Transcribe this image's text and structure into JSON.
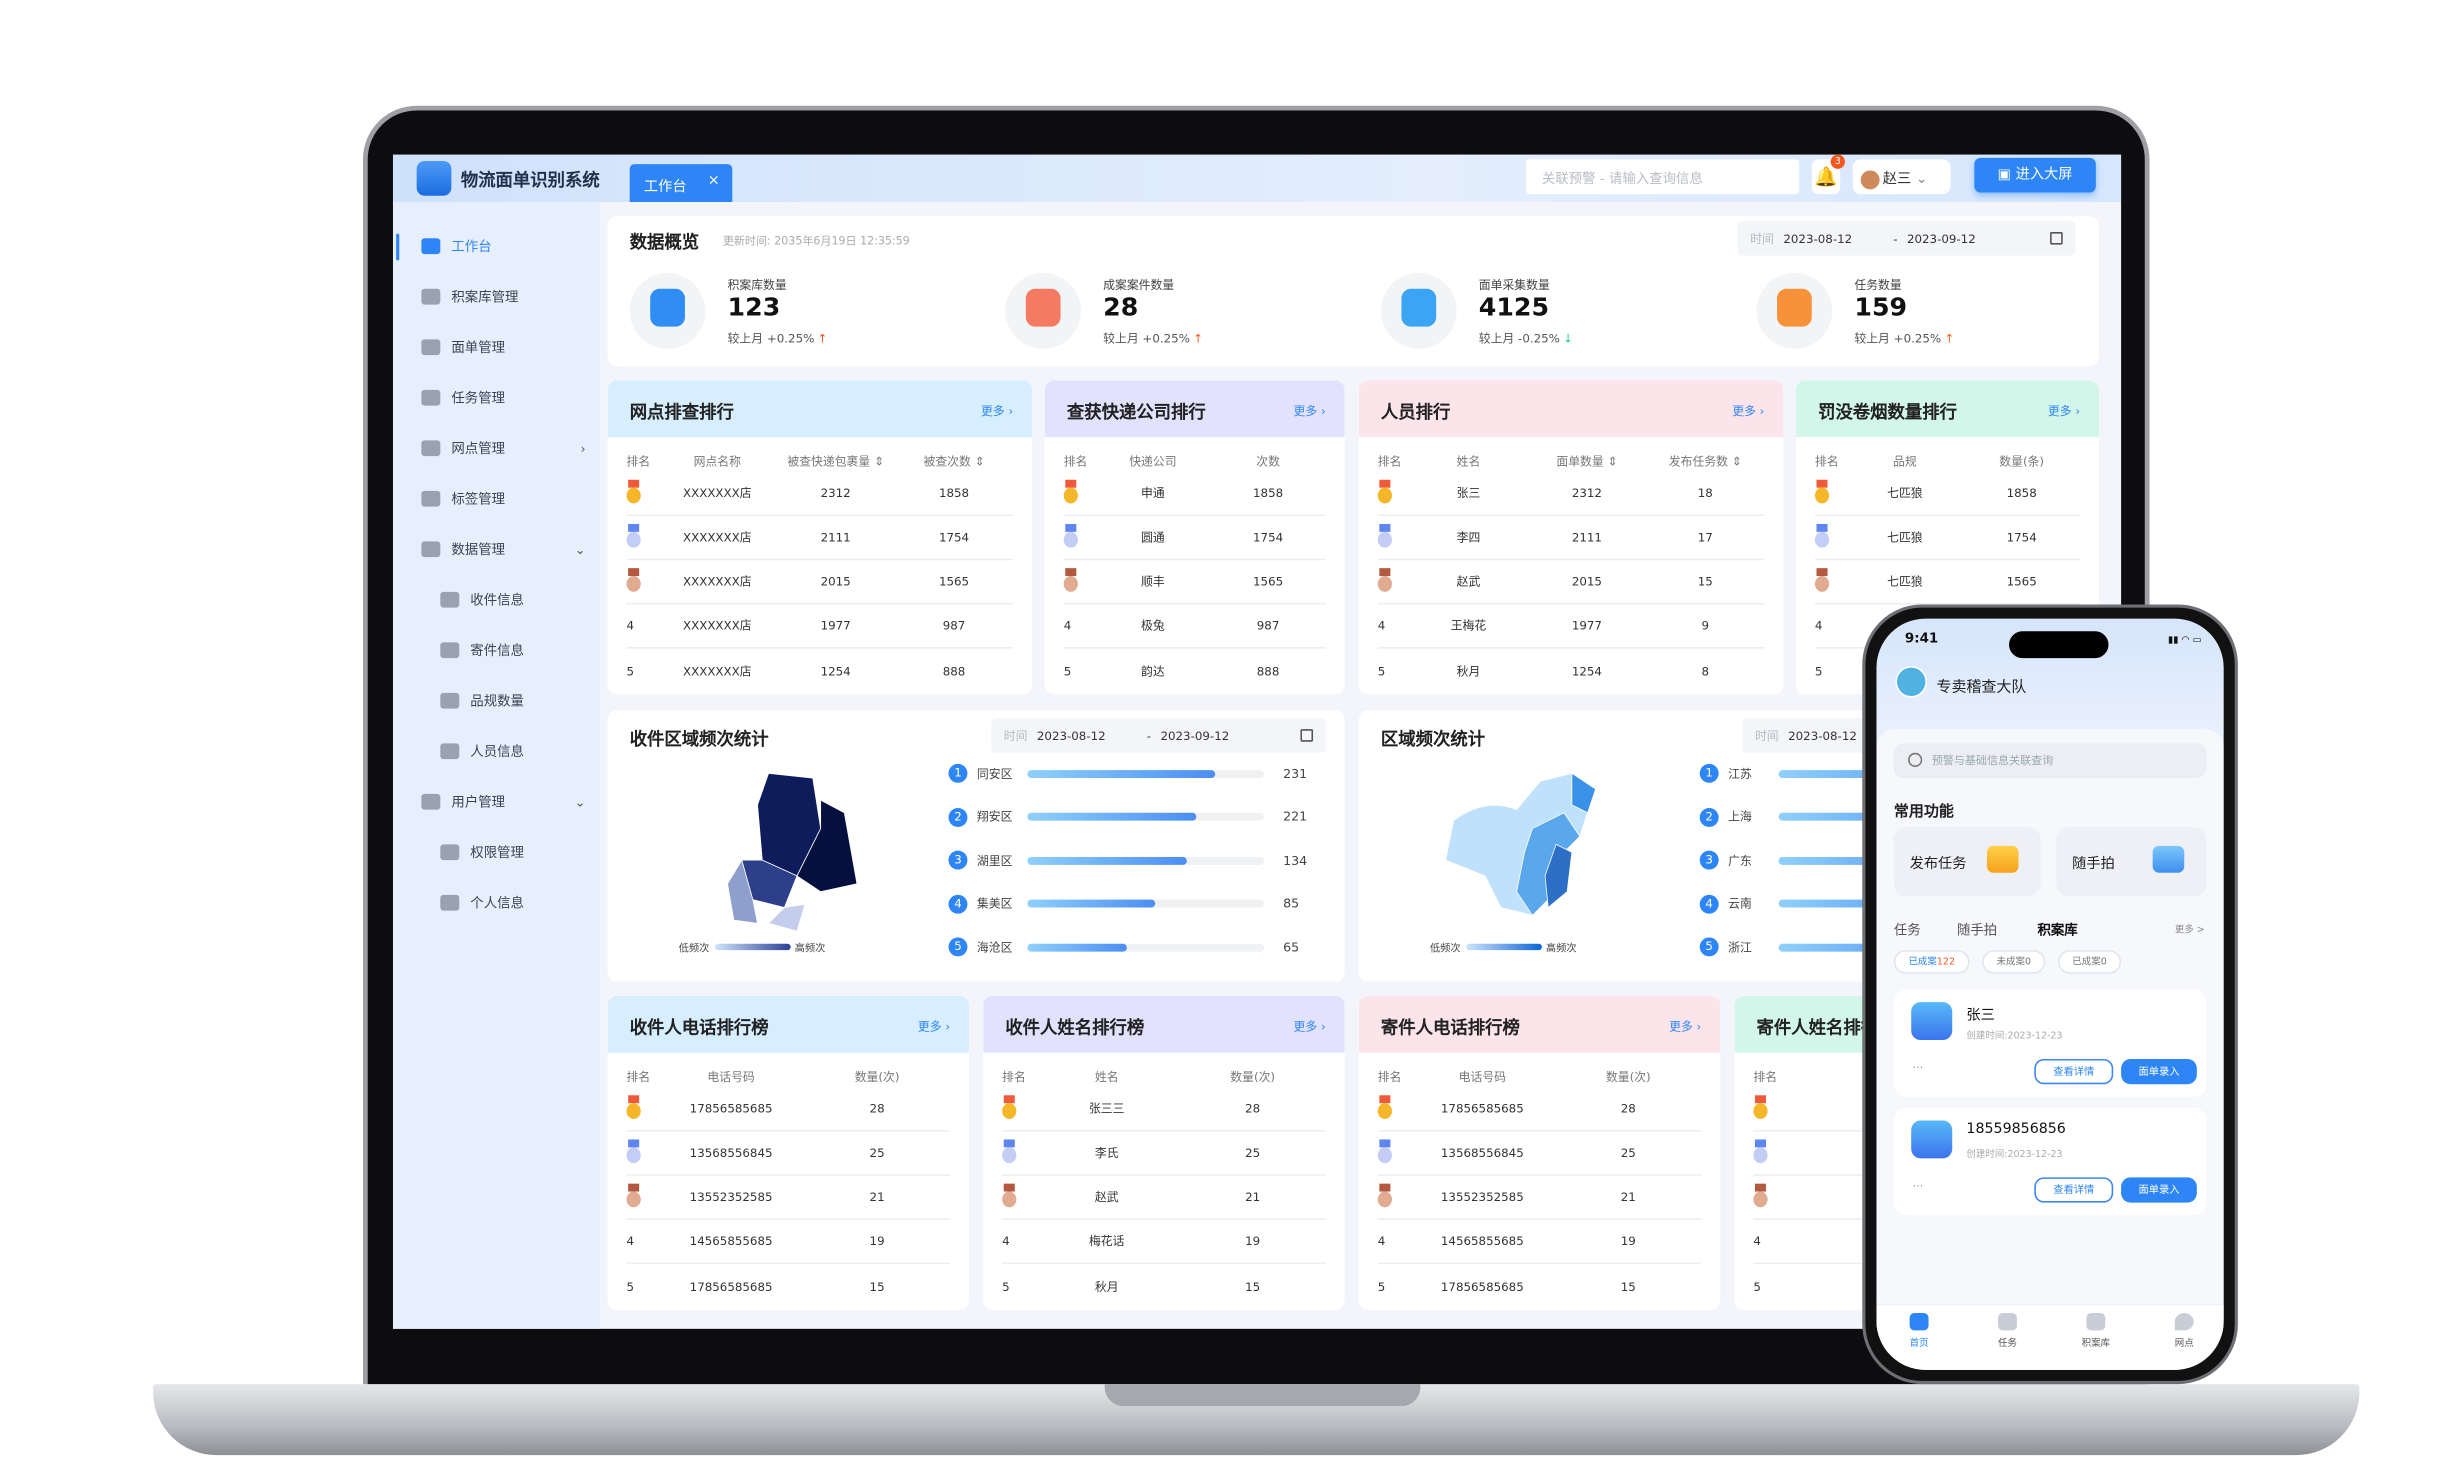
{
  "app": {
    "title": "物流面单识别系统",
    "tab_label": "工作台",
    "search_placeholder": "关联预警 - 请输入查询信息",
    "notification_count": "3",
    "user_name": "赵三",
    "big_screen_button": "进入大屏",
    "accent": "#2e86f6"
  },
  "sidebar": {
    "items": [
      {
        "label": "工作台",
        "icon": "home-icon",
        "active": true,
        "level": 0
      },
      {
        "label": "积案库管理",
        "icon": "hierarchy-icon",
        "level": 0
      },
      {
        "label": "面单管理",
        "icon": "clipboard-icon",
        "level": 0
      },
      {
        "label": "任务管理",
        "icon": "network-icon",
        "level": 0
      },
      {
        "label": "网点管理",
        "icon": "globe-icon",
        "level": 0,
        "arrow": "›"
      },
      {
        "label": "标签管理",
        "icon": "tag-icon",
        "level": 0
      },
      {
        "label": "数据管理",
        "icon": "bar-chart-icon",
        "level": 0,
        "arrow": "⌄"
      },
      {
        "label": "收件信息",
        "icon": "inbox-in-icon",
        "level": 1
      },
      {
        "label": "寄件信息",
        "icon": "inbox-out-icon",
        "level": 1
      },
      {
        "label": "品规数量",
        "icon": "box-icon",
        "level": 1
      },
      {
        "label": "人员信息",
        "icon": "id-card-icon",
        "level": 1
      },
      {
        "label": "用户管理",
        "icon": "user-settings-icon",
        "level": 0,
        "arrow": "⌄"
      },
      {
        "label": "权限管理",
        "icon": "lock-icon",
        "level": 1
      },
      {
        "label": "个人信息",
        "icon": "person-icon",
        "level": 1
      }
    ]
  },
  "overview": {
    "title": "数据概览",
    "updated": "更新时间: 2035年6月19日 12:35:59",
    "date_label": "时间",
    "date_start": "2023-08-12",
    "date_end": "2023-09-12",
    "date_sep": "-",
    "stats": [
      {
        "label": "积案库数量",
        "value": "123",
        "change": "较上月 +0.25%",
        "trend": "up",
        "color": "#2f8df4"
      },
      {
        "label": "成案案件数量",
        "value": "28",
        "change": "较上月 +0.25%",
        "trend": "up",
        "color": "#f57a62"
      },
      {
        "label": "面单采集数量",
        "value": "4125",
        "change": "较上月 -0.25%",
        "trend": "down",
        "color": "#3ba4f5"
      },
      {
        "label": "任务数量",
        "value": "159",
        "change": "较上月 +0.25%",
        "trend": "up",
        "color": "#f7923a"
      }
    ]
  },
  "rank_top": [
    {
      "title": "网点排查排行",
      "more": "更多 ›",
      "color": "#d6eefe",
      "headers": [
        "排名",
        "网点名称",
        "被查快递包裹量 ⇕",
        "被查次数 ⇕"
      ],
      "rows": [
        [
          "1",
          "XXXXXXX店",
          "2312",
          "1858"
        ],
        [
          "2",
          "XXXXXXX店",
          "2111",
          "1754"
        ],
        [
          "3",
          "XXXXXXX店",
          "2015",
          "1565"
        ],
        [
          "4",
          "XXXXXXX店",
          "1977",
          "987"
        ],
        [
          "5",
          "XXXXXXX店",
          "1254",
          "888"
        ]
      ]
    },
    {
      "title": "查获快递公司排行",
      "more": "更多 ›",
      "color": "#e2e2fe",
      "headers": [
        "排名",
        "快递公司",
        "次数"
      ],
      "rows": [
        [
          "1",
          "申通",
          "1858"
        ],
        [
          "2",
          "圆通",
          "1754"
        ],
        [
          "3",
          "顺丰",
          "1565"
        ],
        [
          "4",
          "极兔",
          "987"
        ],
        [
          "5",
          "韵达",
          "888"
        ]
      ]
    },
    {
      "title": "人员排行",
      "more": "更多 ›",
      "color": "#fbe4ea",
      "headers": [
        "排名",
        "姓名",
        "面单数量 ⇕",
        "发布任务数 ⇕"
      ],
      "rows": [
        [
          "1",
          "张三",
          "2312",
          "18"
        ],
        [
          "2",
          "李四",
          "2111",
          "17"
        ],
        [
          "3",
          "赵武",
          "2015",
          "15"
        ],
        [
          "4",
          "王梅花",
          "1977",
          "9"
        ],
        [
          "5",
          "秋月",
          "1254",
          "8"
        ]
      ]
    },
    {
      "title": "罚没卷烟数量排行",
      "more": "更多 ›",
      "color": "#d3f6ea",
      "headers": [
        "排名",
        "品规",
        "数量(条)"
      ],
      "rows": [
        [
          "1",
          "七匹狼",
          "1858"
        ],
        [
          "2",
          "七匹狼",
          "1754"
        ],
        [
          "3",
          "七匹狼",
          "1565"
        ],
        [
          "4",
          "",
          ""
        ],
        [
          "5",
          "",
          ""
        ]
      ]
    }
  ],
  "regions": [
    {
      "title": "收件区域频次统计",
      "date_label": "时间",
      "date_start": "2023-08-12",
      "date_sep": "-",
      "date_end": "2023-09-12",
      "legend_low": "低频次",
      "legend_high": "高频次",
      "items": [
        {
          "rank": "1",
          "name": "同安区",
          "value": "231",
          "fill": 0.79
        },
        {
          "rank": "2",
          "name": "翔安区",
          "value": "221",
          "fill": 0.71
        },
        {
          "rank": "3",
          "name": "湖里区",
          "value": "134",
          "fill": 0.67
        },
        {
          "rank": "4",
          "name": "集美区",
          "value": "85",
          "fill": 0.54
        },
        {
          "rank": "5",
          "name": "海沧区",
          "value": "65",
          "fill": 0.42
        }
      ]
    },
    {
      "title": "区域频次统计",
      "date_label": "时间",
      "date_start": "2023-08-12",
      "legend_low": "低频次",
      "legend_high": "高频次",
      "items": [
        {
          "rank": "1",
          "name": "江苏",
          "fill": 0.95
        },
        {
          "rank": "2",
          "name": "上海",
          "fill": 0.9
        },
        {
          "rank": "3",
          "name": "广东",
          "fill": 0.85
        },
        {
          "rank": "4",
          "name": "云南",
          "fill": 0.8
        },
        {
          "rank": "5",
          "name": "浙江",
          "fill": 0.75
        }
      ]
    }
  ],
  "rank_bottom": [
    {
      "title": "收件人电话排行榜",
      "more": "更多 ›",
      "color": "#d6eefe",
      "headers": [
        "排名",
        "电话号码",
        "数量(次)"
      ],
      "rows": [
        [
          "1",
          "17856585685",
          "28"
        ],
        [
          "2",
          "13568556845",
          "25"
        ],
        [
          "3",
          "13552352585",
          "21"
        ],
        [
          "4",
          "14565855685",
          "19"
        ],
        [
          "5",
          "17856585685",
          "15"
        ]
      ]
    },
    {
      "title": "收件人姓名排行榜",
      "more": "更多 ›",
      "color": "#e2e2fe",
      "headers": [
        "排名",
        "姓名",
        "数量(次)"
      ],
      "rows": [
        [
          "1",
          "张三三",
          "28"
        ],
        [
          "2",
          "李氏",
          "25"
        ],
        [
          "3",
          "赵武",
          "21"
        ],
        [
          "4",
          "梅花话",
          "19"
        ],
        [
          "5",
          "秋月",
          "15"
        ]
      ]
    },
    {
      "title": "寄件人电话排行榜",
      "more": "更多 ›",
      "color": "#fbe4ea",
      "headers": [
        "排名",
        "电话号码",
        "数量(次)"
      ],
      "rows": [
        [
          "1",
          "17856585685",
          "28"
        ],
        [
          "2",
          "13568556845",
          "25"
        ],
        [
          "3",
          "13552352585",
          "21"
        ],
        [
          "4",
          "14565855685",
          "19"
        ],
        [
          "5",
          "17856585685",
          "15"
        ]
      ]
    },
    {
      "title": "寄件人姓名排行榜",
      "more": "",
      "color": "#d3f6ea",
      "headers": [
        "排名"
      ],
      "rows": [
        [
          "1"
        ],
        [
          "2"
        ],
        [
          "3"
        ],
        [
          "4"
        ],
        [
          "5"
        ]
      ]
    }
  ],
  "phone": {
    "time": "9:41",
    "title": "专卖稽查大队",
    "search_placeholder": "预警与基础信息关联查询",
    "section": "常用功能",
    "functions": [
      "发布任务",
      "随手拍"
    ],
    "tabs": [
      "任务",
      "随手拍",
      "积案库"
    ],
    "more": "更多 >",
    "chips": [
      {
        "label": "已成案",
        "count": "122"
      },
      {
        "label": "未成案0"
      },
      {
        "label": "已成案0"
      }
    ],
    "cards": [
      {
        "name": "张三",
        "created": "创建时间:2023-12-23"
      },
      {
        "name": "18559856856",
        "created": "创建时间:2023-12-23"
      }
    ],
    "card_more": "···",
    "detail_button": "查看详情",
    "entry_button": "面单录入",
    "nav": [
      "首页",
      "任务",
      "积案库",
      "网点"
    ]
  }
}
